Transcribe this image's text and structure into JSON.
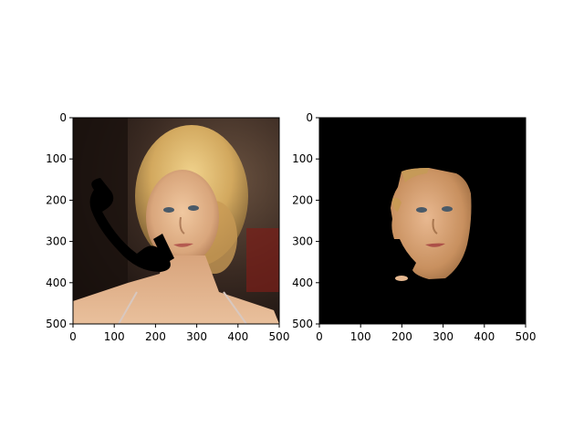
{
  "chart_data": [
    {
      "type": "image",
      "title": "",
      "image_content": "photo of a blonde woman with black occlusion shapes (handset and bar) over the left side of her face",
      "xlim": [
        0,
        500
      ],
      "ylim": [
        500,
        0
      ],
      "xticks": [
        0,
        100,
        200,
        300,
        400,
        500
      ],
      "yticks": [
        0,
        100,
        200,
        300,
        400,
        500
      ],
      "xtick_labels": [
        "0",
        "100",
        "200",
        "300",
        "400",
        "500"
      ],
      "ytick_labels": [
        "0",
        "100",
        "200",
        "300",
        "400",
        "500"
      ]
    },
    {
      "type": "image",
      "title": "",
      "image_content": "segmented face region of the woman on a black background",
      "xlim": [
        0,
        500
      ],
      "ylim": [
        500,
        0
      ],
      "xticks": [
        0,
        100,
        200,
        300,
        400,
        500
      ],
      "yticks": [
        0,
        100,
        200,
        300,
        400,
        500
      ],
      "xtick_labels": [
        "0",
        "100",
        "200",
        "300",
        "400",
        "500"
      ],
      "ytick_labels": [
        "0",
        "100",
        "200",
        "300",
        "400",
        "500"
      ]
    }
  ],
  "colors": {
    "photo_background": "#3a2a22",
    "hair": "#d8b066",
    "skin": "#e1b48c",
    "occluder": "#000000",
    "mask_background": "#000000"
  }
}
